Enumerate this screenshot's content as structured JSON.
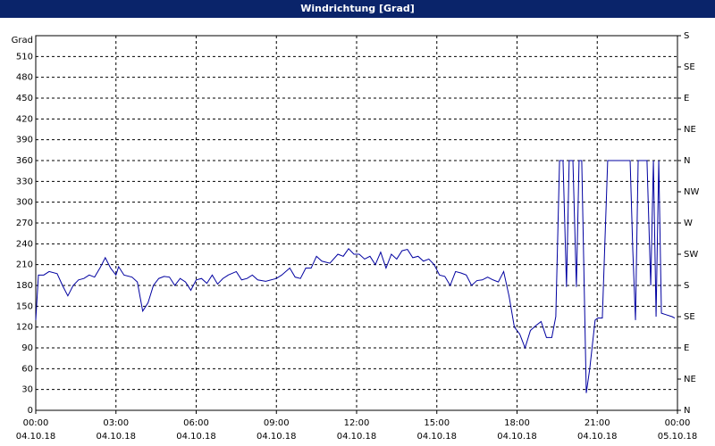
{
  "chart_data": {
    "type": "line",
    "title": "Windrichtung [Grad]",
    "y_label": "Grad",
    "color": "#0000a0",
    "grid": true,
    "xlim": [
      0,
      24
    ],
    "xticks": [
      {
        "value": 0,
        "label": "00:00",
        "date": "04.10.18"
      },
      {
        "value": 3,
        "label": "03:00",
        "date": "04.10.18"
      },
      {
        "value": 6,
        "label": "06:00",
        "date": "04.10.18"
      },
      {
        "value": 9,
        "label": "09:00",
        "date": "04.10.18"
      },
      {
        "value": 12,
        "label": "12:00",
        "date": "04.10.18"
      },
      {
        "value": 15,
        "label": "15:00",
        "date": "04.10.18"
      },
      {
        "value": 18,
        "label": "18:00",
        "date": "04.10.18"
      },
      {
        "value": 21,
        "label": "21:00",
        "date": "04.10.18"
      },
      {
        "value": 24,
        "label": "00:00",
        "date": "05.10.18"
      }
    ],
    "ylim": [
      0,
      540
    ],
    "yticks": [
      0,
      30,
      60,
      90,
      120,
      150,
      180,
      210,
      240,
      270,
      300,
      330,
      360,
      390,
      420,
      450,
      480,
      510
    ],
    "y2lim": [
      0,
      540
    ],
    "y2ticks": [
      {
        "value": 0,
        "label": "N"
      },
      {
        "value": 45,
        "label": "NE"
      },
      {
        "value": 90,
        "label": "E"
      },
      {
        "value": 135,
        "label": "SE"
      },
      {
        "value": 180,
        "label": "S"
      },
      {
        "value": 225,
        "label": "SW"
      },
      {
        "value": 270,
        "label": "W"
      },
      {
        "value": 315,
        "label": "NW"
      },
      {
        "value": 360,
        "label": "N"
      },
      {
        "value": 405,
        "label": "NE"
      },
      {
        "value": 450,
        "label": "E"
      },
      {
        "value": 495,
        "label": "SE"
      },
      {
        "value": 540,
        "label": "S"
      }
    ],
    "x": [
      0.0,
      0.1,
      0.3,
      0.5,
      0.8,
      1.0,
      1.2,
      1.4,
      1.6,
      1.8,
      2.0,
      2.2,
      2.4,
      2.6,
      2.8,
      3.0,
      3.1,
      3.3,
      3.6,
      3.8,
      4.0,
      4.2,
      4.4,
      4.6,
      4.8,
      5.0,
      5.2,
      5.4,
      5.6,
      5.8,
      6.0,
      6.2,
      6.4,
      6.6,
      6.8,
      7.0,
      7.2,
      7.5,
      7.7,
      7.9,
      8.1,
      8.3,
      8.6,
      9.0,
      9.2,
      9.5,
      9.7,
      9.9,
      10.1,
      10.3,
      10.5,
      10.7,
      11.0,
      11.3,
      11.5,
      11.7,
      11.9,
      12.1,
      12.3,
      12.5,
      12.7,
      12.9,
      13.1,
      13.3,
      13.5,
      13.7,
      13.9,
      14.1,
      14.3,
      14.5,
      14.7,
      14.9,
      15.1,
      15.3,
      15.5,
      15.7,
      15.9,
      16.1,
      16.3,
      16.5,
      16.7,
      16.9,
      17.1,
      17.3,
      17.5,
      17.7,
      17.9,
      18.1,
      18.3,
      18.5,
      18.7,
      18.9,
      19.1,
      19.3,
      19.45,
      19.59,
      19.72,
      19.85,
      19.95,
      20.09,
      20.22,
      20.32,
      20.42,
      20.59,
      20.72,
      20.92,
      21.02,
      21.19,
      21.39,
      22.23,
      22.33,
      22.43,
      22.53,
      22.86,
      23.0,
      23.1,
      23.2,
      23.3,
      23.4,
      23.56,
      23.8,
      23.9
    ],
    "values": [
      130,
      195,
      195,
      200,
      197,
      180,
      165,
      180,
      188,
      190,
      195,
      192,
      205,
      220,
      205,
      195,
      207,
      195,
      192,
      185,
      143,
      155,
      180,
      190,
      193,
      192,
      180,
      190,
      185,
      173,
      188,
      190,
      183,
      195,
      182,
      190,
      195,
      200,
      188,
      190,
      195,
      188,
      186,
      190,
      195,
      205,
      192,
      190,
      205,
      205,
      222,
      215,
      212,
      225,
      222,
      233,
      225,
      225,
      218,
      222,
      210,
      228,
      205,
      225,
      218,
      230,
      232,
      220,
      222,
      215,
      218,
      210,
      195,
      193,
      180,
      200,
      198,
      195,
      180,
      187,
      188,
      192,
      188,
      185,
      200,
      165,
      120,
      110,
      90,
      115,
      122,
      128,
      105,
      105,
      135,
      360,
      360,
      178,
      360,
      360,
      178,
      360,
      360,
      25,
      60,
      130,
      133,
      133,
      360,
      360,
      230,
      130,
      360,
      360,
      180,
      360,
      135,
      360,
      140,
      138,
      135,
      133
    ]
  }
}
